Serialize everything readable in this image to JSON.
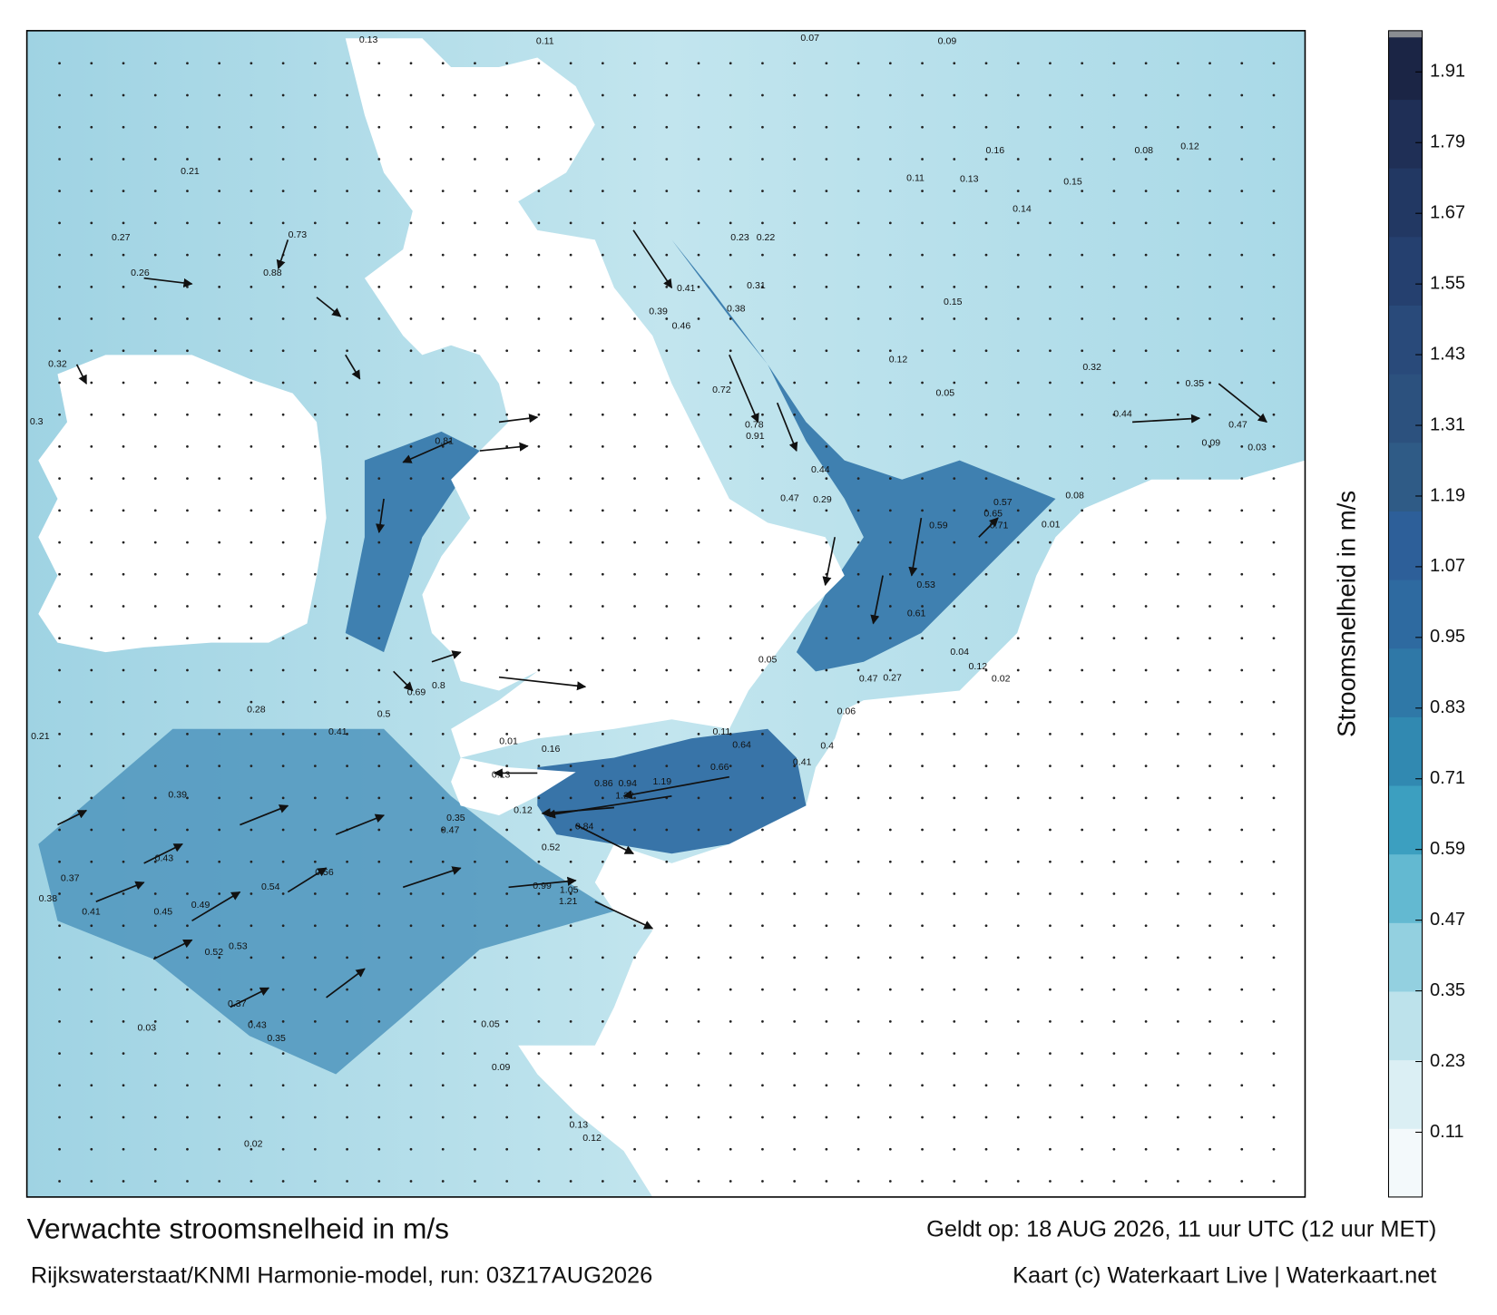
{
  "header": {
    "title": "Verwachte stroomsnelheid in m/s",
    "valid": "Geldt op: 18 AUG 2026, 11 uur UTC (12 uur MET)"
  },
  "footer": {
    "source": "Rijkswaterstaat/KNMI Harmonie-model, run: 03Z17AUG2026",
    "credit": "Kaart (c) Waterkaart Live | Waterkaart.net"
  },
  "colorbar": {
    "label": "Stroomsnelheid in m/s",
    "lim": [
      0,
      1.98
    ],
    "ticks": [
      0.11,
      0.23,
      0.35,
      0.47,
      0.59,
      0.71,
      0.83,
      0.95,
      1.07,
      1.19,
      1.31,
      1.43,
      1.55,
      1.67,
      1.79,
      1.91
    ],
    "colors": [
      "#f3f9fb",
      "#dbeff4",
      "#bde2eb",
      "#93d0e0",
      "#63b9d1",
      "#3c9fc0",
      "#3189b1",
      "#2f78a7",
      "#2e6aa0",
      "#2d5f99",
      "#2f5b86",
      "#2c517e",
      "#294a7a",
      "#25406f",
      "#223863",
      "#1f2f56",
      "#1b2545"
    ]
  },
  "speed_labels": [
    0.81,
    0.88,
    0.73,
    0.91,
    0.78,
    0.72,
    1.22,
    0.94,
    0.86,
    1.19,
    0.99,
    1.05,
    1.21,
    0.84,
    0.54,
    0.56,
    0.47,
    0.43,
    0.39,
    0.28,
    0.41,
    0.8,
    0.69,
    0.5,
    0.35,
    0.52,
    0.71,
    0.65,
    0.57,
    0.61,
    0.59,
    0.53,
    0.44,
    0.47,
    0.29,
    0.22,
    0.23,
    0.31,
    0.38,
    0.39,
    0.46,
    0.41,
    0.15,
    0.12,
    0.05,
    0.16,
    0.13,
    0.11,
    0.14,
    0.15,
    0.32,
    0.44,
    0.47,
    0.35,
    0.12,
    0.08,
    0.07,
    0.09,
    0.11,
    0.13,
    0.21,
    0.27,
    0.26,
    0.32,
    0.3,
    0.21,
    0.37,
    0.38,
    0.41,
    0.45,
    0.49,
    0.52,
    0.53,
    0.37,
    0.43,
    0.35,
    0.03,
    0.02,
    0.13,
    0.12,
    0.09,
    0.05,
    0.4,
    0.41,
    0.66,
    0.64,
    0.11,
    0.16,
    0.13,
    0.12,
    0.01,
    0.05,
    0.06,
    0.47,
    0.27,
    0.12,
    0.02,
    0.04,
    0.01,
    0.08,
    0.03,
    0.09
  ]
}
